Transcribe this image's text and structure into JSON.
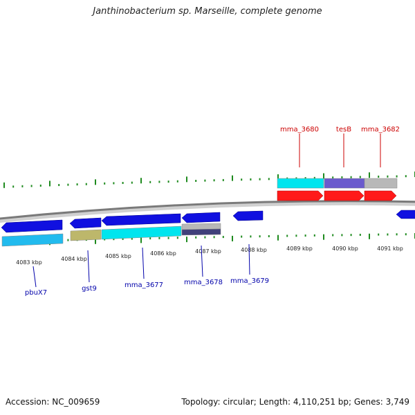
{
  "title": "Janthinobacterium sp. Marseille, complete genome",
  "footer": {
    "accession": "Accession: NC_009659",
    "topology": "Topology: circular; Length: 4,110,251 bp; Genes: 3,749"
  },
  "colors": {
    "backbone": "#7a7a7a",
    "tick_green": "#1e8a1e",
    "forward_label": "#cc0000",
    "reverse_label": "#0000aa",
    "strand_forward_arrow": "#ff1a1a",
    "strand_reverse_arrow": "#1010e0",
    "cog_cyan": "#00e5ee",
    "cog_skyblue": "#22bbee",
    "cog_olive": "#bdb76b",
    "cog_slate": "#6a5acd",
    "cog_grey": "#b8b8b8",
    "cog_darkslate": "#40407a"
  },
  "scale_labels": [
    "4083 kbp",
    "4084 kbp",
    "4085 kbp",
    "4086 kbp",
    "4087 kbp",
    "4088 kbp",
    "4089 kbp",
    "4090 kbp",
    "4091 kbp"
  ],
  "forward_gene_labels": [
    "mma_3680",
    "tesB",
    "mma_3682"
  ],
  "reverse_gene_labels": [
    "pbuX7",
    "gst9",
    "mma_3677",
    "mma_3678",
    "mma_3679"
  ]
}
